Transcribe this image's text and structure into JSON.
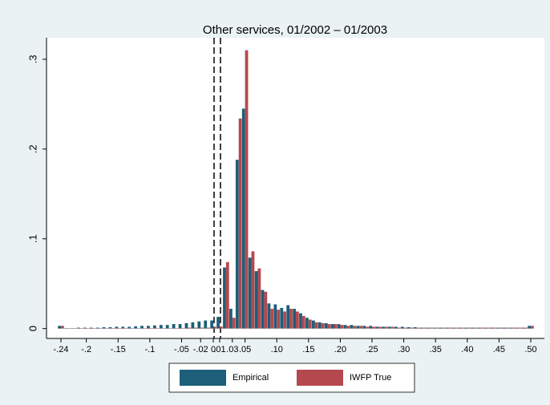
{
  "chart_data": {
    "type": "bar",
    "title": "Other services, 01/2002 – 01/2003",
    "categories": [
      "-.24",
      null,
      null,
      null,
      "-.2",
      null,
      null,
      null,
      null,
      "-.15",
      null,
      null,
      null,
      null,
      "-.1",
      null,
      null,
      null,
      null,
      "-.05",
      null,
      null,
      "-.02",
      null,
      "0",
      ".01",
      null,
      ".03",
      null,
      ".05",
      null,
      null,
      null,
      null,
      ".10",
      null,
      null,
      null,
      null,
      ".15",
      null,
      null,
      null,
      null,
      ".20",
      null,
      null,
      null,
      null,
      ".25",
      null,
      null,
      null,
      null,
      ".30",
      null,
      null,
      null,
      null,
      ".35",
      null,
      null,
      null,
      null,
      ".40",
      null,
      null,
      null,
      null,
      ".45",
      null,
      null,
      null,
      null,
      ".50"
    ],
    "series": [
      {
        "name": "Empirical",
        "color": "#1d5f78",
        "values": [
          0.003,
          0.0005,
          0.0005,
          0.001,
          0.001,
          0.001,
          0.001,
          0.0015,
          0.0015,
          0.002,
          0.002,
          0.002,
          0.0025,
          0.003,
          0.003,
          0.0035,
          0.004,
          0.004,
          0.005,
          0.005,
          0.006,
          0.007,
          0.008,
          0.009,
          0.009,
          0.013,
          0.068,
          0.022,
          0.188,
          0.245,
          0.079,
          0.064,
          0.043,
          0.028,
          0.027,
          0.023,
          0.026,
          0.022,
          0.017,
          0.012,
          0.009,
          0.007,
          0.006,
          0.005,
          0.005,
          0.004,
          0.004,
          0.003,
          0.003,
          0.003,
          0.002,
          0.002,
          0.002,
          0.002,
          0.002,
          0.0015,
          0.0015,
          0.001,
          0.001,
          0.001,
          0.001,
          0.001,
          0.001,
          0.001,
          0.001,
          0.001,
          0.001,
          0.001,
          0.001,
          0.001,
          0.001,
          0.001,
          0.001,
          0.001,
          0.003
        ]
      },
      {
        "name": "IWFP True",
        "color": "#b5484f",
        "values": [
          0.003,
          0.0005,
          0.0005,
          0.0005,
          0.0005,
          0.0005,
          0.0005,
          0.0005,
          0.0005,
          0.0005,
          0.0005,
          0.0005,
          0.0005,
          0.0005,
          0.0005,
          0.0005,
          0.0005,
          0.0005,
          0.0005,
          0.0005,
          0.001,
          0.001,
          0.001,
          0.001,
          0.002,
          0.002,
          0.074,
          0.012,
          0.234,
          0.31,
          0.086,
          0.067,
          0.041,
          0.022,
          0.021,
          0.019,
          0.022,
          0.019,
          0.014,
          0.01,
          0.007,
          0.006,
          0.005,
          0.005,
          0.004,
          0.003,
          0.003,
          0.003,
          0.002,
          0.002,
          0.002,
          0.002,
          0.002,
          0.001,
          0.001,
          0.001,
          0.001,
          0.001,
          0.001,
          0.001,
          0.001,
          0.001,
          0.001,
          0.001,
          0.001,
          0.001,
          0.001,
          0.001,
          0.001,
          0.001,
          0.001,
          0.001,
          0.001,
          0.001,
          0.003
        ]
      }
    ],
    "ylim": [
      -0.011,
      0.324
    ],
    "yticks": [
      0,
      {
        "value": 0.1,
        "label": ".1"
      },
      {
        "value": 0.2,
        "label": ".2"
      },
      {
        "value": 0.3,
        "label": ".3"
      }
    ]
  }
}
